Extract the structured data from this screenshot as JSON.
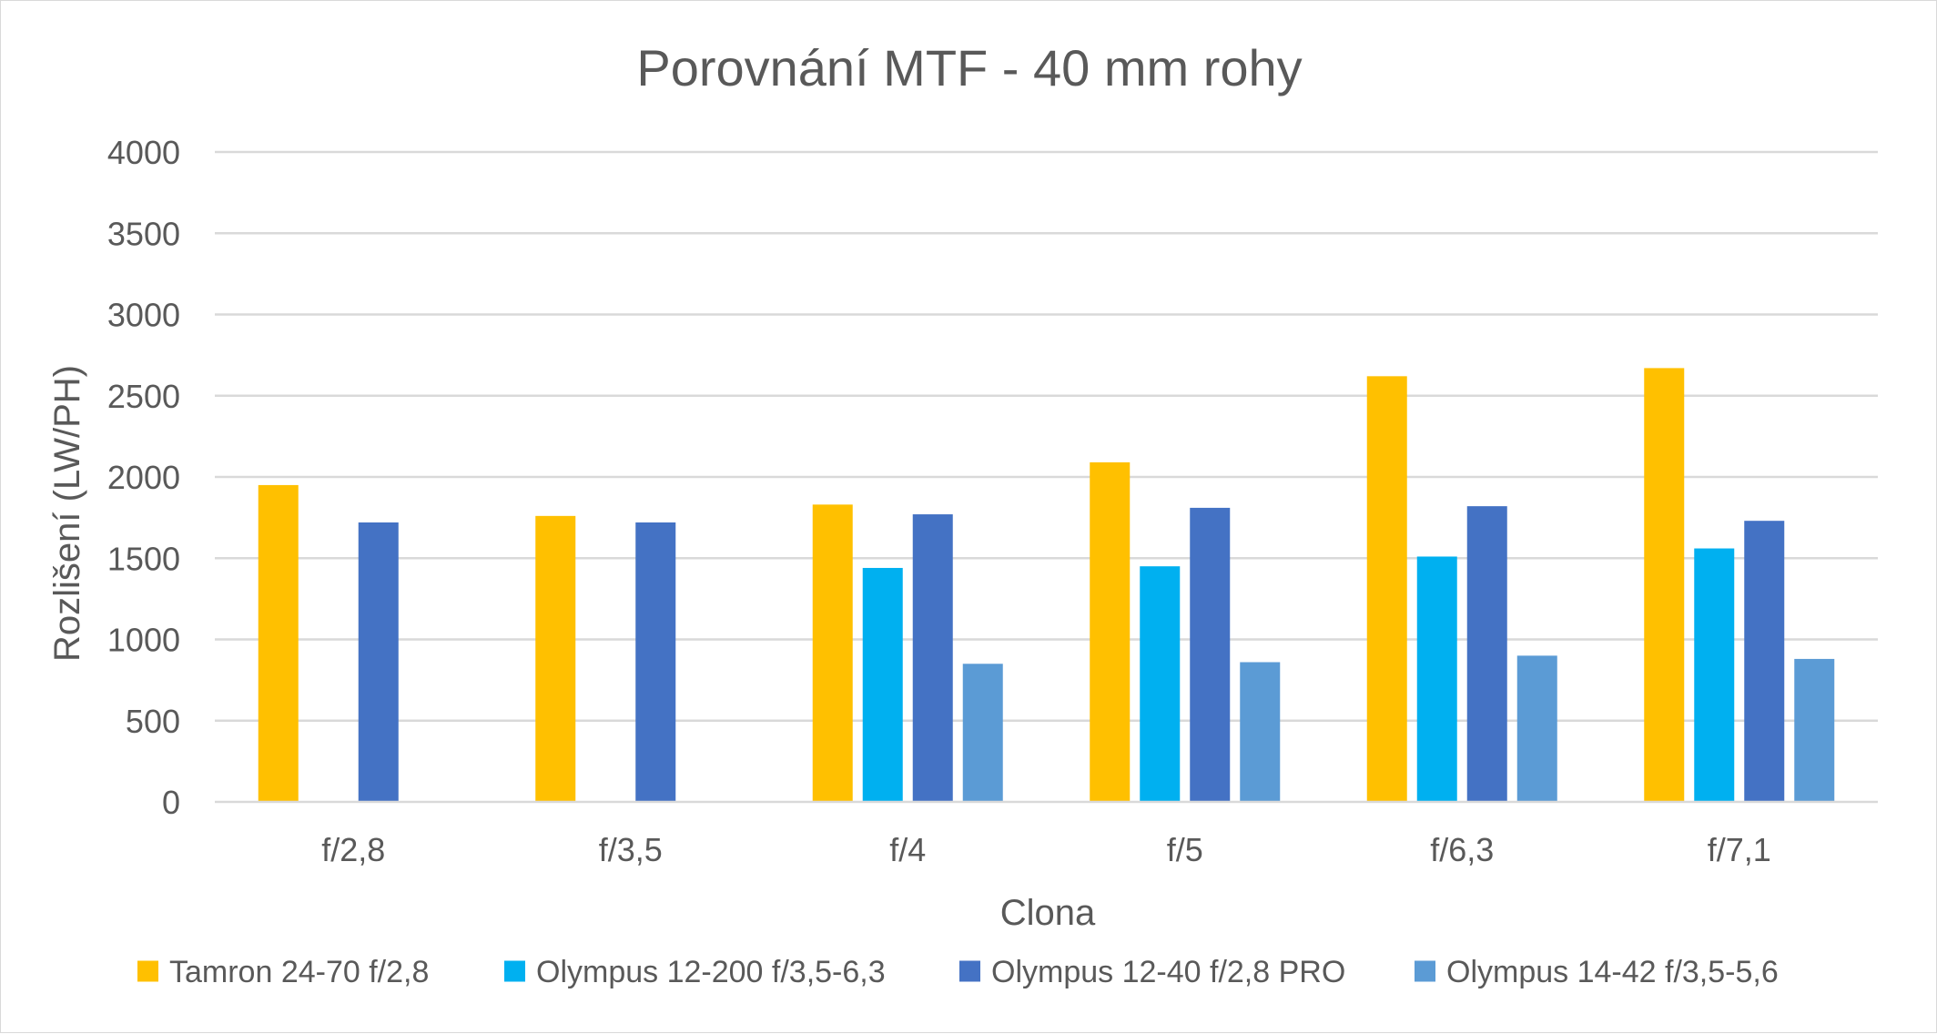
{
  "chart_data": {
    "type": "bar",
    "title": "Porovnání MTF - 40 mm rohy",
    "xlabel": "Clona",
    "ylabel": "Rozlišení (LW/PH)",
    "ylim": [
      0,
      4000
    ],
    "yticks": [
      0,
      500,
      1000,
      1500,
      2000,
      2500,
      3000,
      3500,
      4000
    ],
    "grid": true,
    "legend_position": "bottom",
    "categories": [
      "f/2,8",
      "f/3,5",
      "f/4",
      "f/5",
      "f/6,3",
      "f/7,1"
    ],
    "series": [
      {
        "name": "Tamron 24-70 f/2,8",
        "color": "#FFC000",
        "values": [
          1950,
          1760,
          1830,
          2090,
          2620,
          2670
        ]
      },
      {
        "name": "Olympus 12-200 f/3,5-6,3",
        "color": "#00B0F0",
        "values": [
          null,
          null,
          1440,
          1450,
          1510,
          1560
        ]
      },
      {
        "name": "Olympus 12-40 f/2,8 PRO",
        "color": "#4472C4",
        "values": [
          1720,
          1720,
          1770,
          1810,
          1820,
          1730
        ]
      },
      {
        "name": "Olympus 14-42 f/3,5-5,6",
        "color": "#5B9BD5",
        "values": [
          null,
          null,
          850,
          860,
          900,
          880
        ]
      }
    ]
  }
}
